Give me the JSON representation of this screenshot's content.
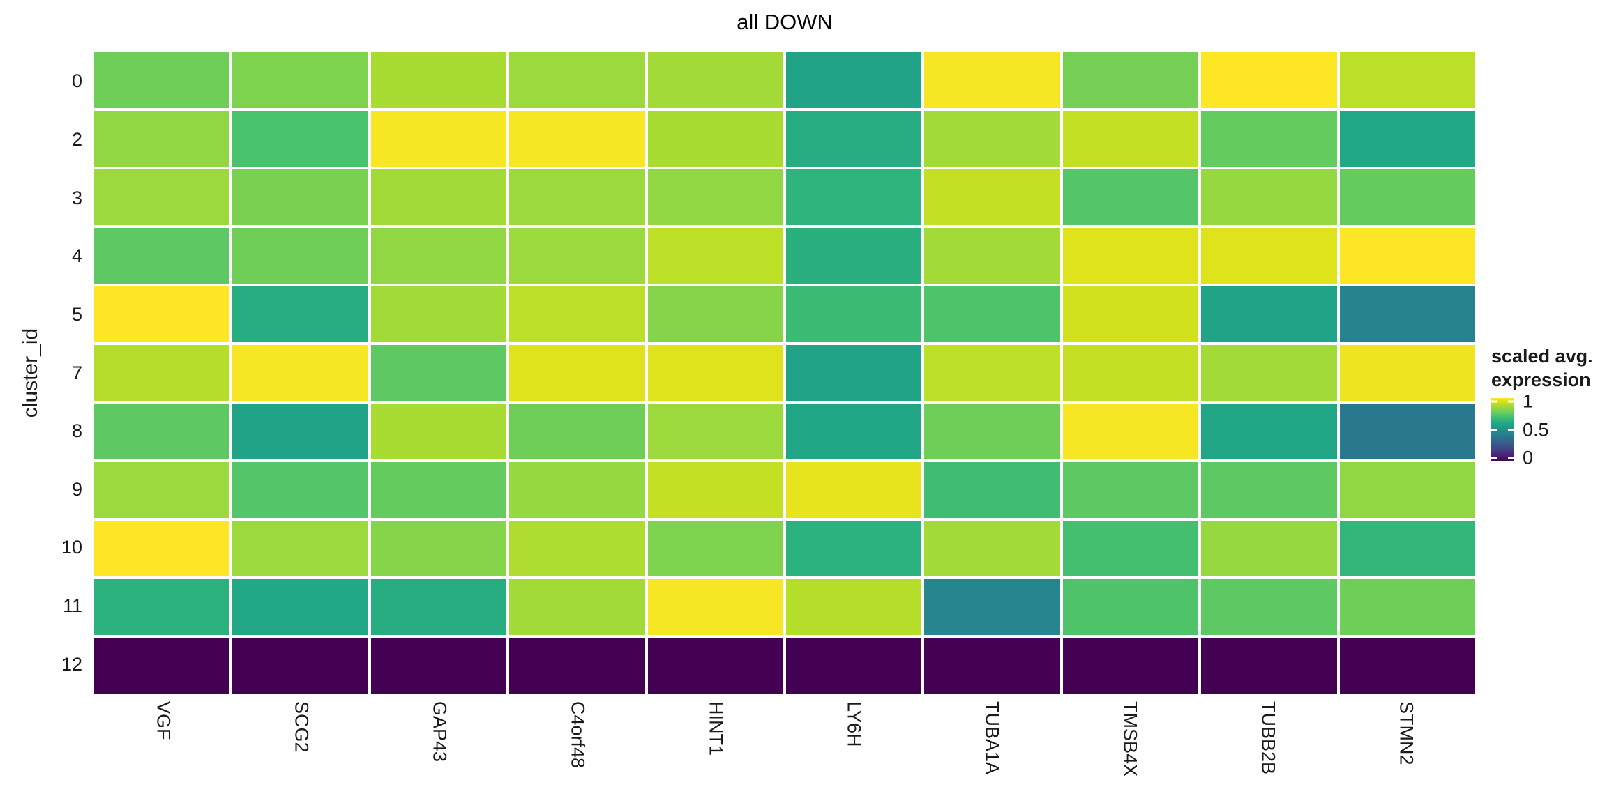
{
  "title": "all DOWN",
  "legend": {
    "title_line1": "scaled avg.",
    "title_line2": "expression"
  },
  "colors": {
    "background": "#ffffff",
    "text": "#1a1a1a",
    "cell_gap": "#ffffff",
    "viridis_min": "#440154",
    "viridis_mid": "#21918c",
    "viridis_max": "#fde725"
  },
  "chart_data": {
    "type": "heatmap",
    "title": "all DOWN",
    "xlabel": "",
    "ylabel": "cluster_id",
    "columns": [
      "VGF",
      "SCG2",
      "GAP43",
      "C4orf48",
      "HINT1",
      "LY6H",
      "TUBA1A",
      "TMSB4X",
      "TUBB2B",
      "STMN2"
    ],
    "rows": [
      "0",
      "2",
      "3",
      "4",
      "5",
      "7",
      "8",
      "9",
      "10",
      "11",
      "12"
    ],
    "values": [
      [
        0.78,
        0.81,
        0.88,
        0.86,
        0.87,
        0.58,
        0.99,
        0.79,
        1.0,
        0.91
      ],
      [
        0.84,
        0.71,
        0.99,
        0.99,
        0.88,
        0.62,
        0.87,
        0.92,
        0.76,
        0.6
      ],
      [
        0.86,
        0.8,
        0.87,
        0.86,
        0.84,
        0.65,
        0.92,
        0.73,
        0.85,
        0.76
      ],
      [
        0.75,
        0.78,
        0.84,
        0.86,
        0.91,
        0.63,
        0.87,
        0.96,
        0.96,
        1.0
      ],
      [
        1.0,
        0.62,
        0.87,
        0.91,
        0.82,
        0.68,
        0.72,
        0.94,
        0.58,
        0.44
      ],
      [
        0.9,
        0.99,
        0.75,
        0.96,
        0.96,
        0.58,
        0.91,
        0.92,
        0.87,
        0.98
      ],
      [
        0.75,
        0.58,
        0.88,
        0.78,
        0.86,
        0.59,
        0.78,
        0.99,
        0.59,
        0.4
      ],
      [
        0.86,
        0.73,
        0.76,
        0.85,
        0.92,
        0.97,
        0.69,
        0.75,
        0.75,
        0.84
      ],
      [
        1.0,
        0.86,
        0.82,
        0.89,
        0.81,
        0.64,
        0.87,
        0.7,
        0.85,
        0.66
      ],
      [
        0.64,
        0.6,
        0.62,
        0.87,
        0.99,
        0.9,
        0.45,
        0.72,
        0.75,
        0.78
      ],
      [
        0.0,
        0.0,
        0.0,
        0.0,
        0.0,
        0.0,
        0.0,
        0.0,
        0.0,
        0.0
      ]
    ],
    "value_range": [
      0,
      1
    ],
    "colormap": "viridis",
    "grid": false,
    "legend_title": "scaled avg. expression",
    "legend_position": "right",
    "legend_ticks": [
      {
        "label": "1",
        "value": 1
      },
      {
        "label": "0.5",
        "value": 0.5
      },
      {
        "label": "0",
        "value": 0
      }
    ]
  }
}
